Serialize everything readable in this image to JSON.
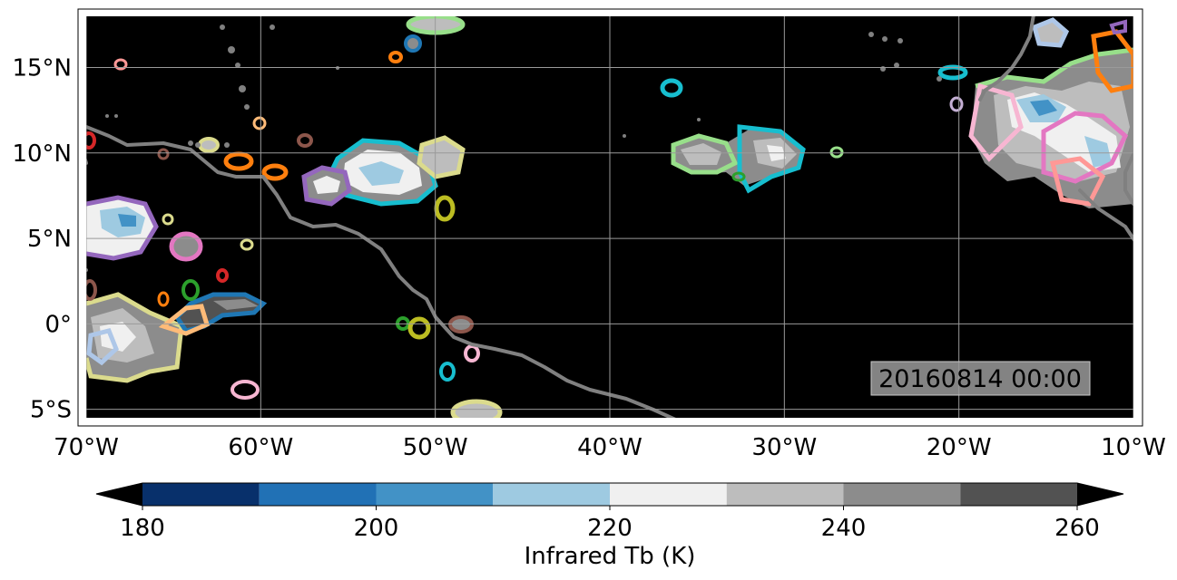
{
  "map": {
    "timestamp": "20160814 00:00",
    "lon_range": [
      -70,
      -10
    ],
    "lat_range": [
      -5.5,
      18
    ],
    "x_ticks": [
      {
        "value": -70,
        "label": "70°W"
      },
      {
        "value": -60,
        "label": "60°W"
      },
      {
        "value": -50,
        "label": "50°W"
      },
      {
        "value": -40,
        "label": "40°W"
      },
      {
        "value": -30,
        "label": "30°W"
      },
      {
        "value": -20,
        "label": "20°W"
      },
      {
        "value": -10,
        "label": "10°W"
      }
    ],
    "y_ticks": [
      {
        "value": 15,
        "label": "15°N"
      },
      {
        "value": 10,
        "label": "10°N"
      },
      {
        "value": 5,
        "label": "5°N"
      },
      {
        "value": 0,
        "label": "0°"
      },
      {
        "value": -5,
        "label": "5°S"
      }
    ],
    "grid": true,
    "background_color": "#000000",
    "coastline_color": "#808080"
  },
  "colorbar": {
    "label": "Infrared Tb (K)",
    "min": 180,
    "max": 260,
    "step": 10,
    "extend": "both",
    "colors": [
      "#08306b",
      "#2171b5",
      "#4292c6",
      "#9ecae1",
      "#f0f0f0",
      "#bdbdbd",
      "#8c8c8c",
      "#525252"
    ],
    "under_color": "#000000",
    "over_color": "#000000",
    "tick_labels": [
      "180",
      "200",
      "220",
      "240",
      "260"
    ]
  }
}
